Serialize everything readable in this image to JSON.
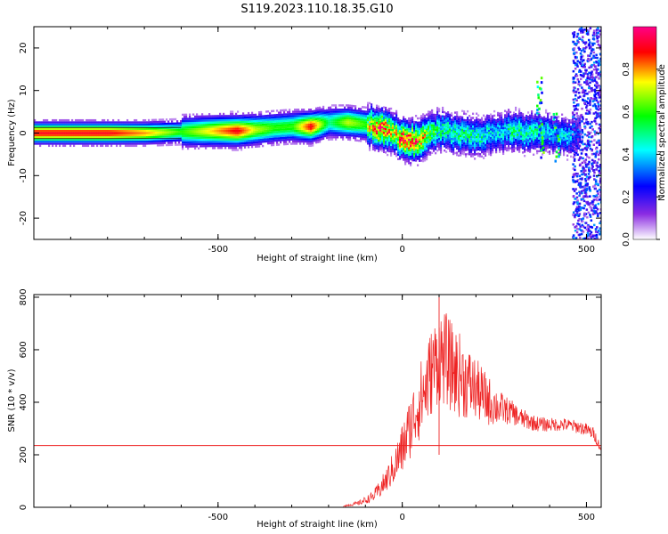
{
  "title": "S119.2023.110.18.35.G10",
  "chart_data": [
    {
      "type": "heatmap",
      "xlabel": "Height of straight line (km)",
      "ylabel": "Frequency (Hz)",
      "xlim": [
        -1000,
        540
      ],
      "ylim": [
        -25,
        25
      ],
      "xticks": [
        -500,
        0,
        500
      ],
      "xtick_labels": [
        "-500",
        "0",
        "500"
      ],
      "yticks": [
        -20,
        -10,
        0,
        10,
        20
      ],
      "ytick_labels": [
        "-20",
        "-10",
        "0",
        "10",
        "20"
      ],
      "colorbar": {
        "label": "Normalized spectral amplitude",
        "range": [
          0.0,
          1.0
        ],
        "ticks": [
          0.0,
          0.2,
          0.4,
          0.6,
          0.8
        ],
        "tick_labels": [
          "0.0",
          "0.2",
          "0.4",
          "0.6",
          "0.8"
        ],
        "colors": [
          "#ffffff",
          "#8a2be2",
          "#0000ff",
          "#00ffff",
          "#00ff00",
          "#ffff00",
          "#ff0000",
          "#ff0088"
        ]
      },
      "ridge": {
        "x": [
          -1000,
          -900,
          -800,
          -700,
          -600,
          -500,
          -450,
          -400,
          -350,
          -300,
          -250,
          -200,
          -150,
          -100,
          -75,
          -50,
          -25,
          0,
          25,
          50,
          75,
          100,
          150,
          200,
          250,
          300,
          350,
          400,
          450,
          470
        ],
        "y": [
          0,
          0,
          0,
          0,
          0.3,
          0.5,
          0.5,
          0.8,
          1.2,
          1.5,
          1.5,
          2.5,
          2.5,
          2.0,
          1.5,
          1.0,
          0,
          -1.5,
          -2.0,
          -1.8,
          0,
          0.5,
          0,
          -1.0,
          0,
          0.5,
          0,
          0,
          -1.0,
          0
        ],
        "amplitude": [
          0.9,
          0.9,
          0.9,
          0.8,
          0.6,
          0.8,
          0.9,
          0.7,
          0.6,
          0.6,
          0.9,
          0.5,
          0.7,
          0.6,
          0.9,
          0.9,
          0.7,
          0.9,
          0.9,
          0.8,
          0.6,
          0.5,
          0.5,
          0.5,
          0.4,
          0.5,
          0.5,
          0.4,
          0.4,
          0.3
        ]
      }
    },
    {
      "type": "line",
      "xlabel": "Height of straight line (km)",
      "ylabel": "SNR (10 * v/v)",
      "xlim": [
        -1000,
        540
      ],
      "ylim": [
        0,
        810
      ],
      "xticks": [
        -500,
        0,
        500
      ],
      "xtick_labels": [
        "-500",
        "0",
        "500"
      ],
      "yticks": [
        0,
        200,
        400,
        600,
        800
      ],
      "ytick_labels": [
        "0",
        "200",
        "400",
        "600",
        "800"
      ],
      "threshold": 235,
      "series": [
        {
          "color": "#ee2222",
          "x": [
            -160,
            -120,
            -80,
            -60,
            -40,
            -20,
            0,
            20,
            40,
            60,
            80,
            100,
            120,
            140,
            160,
            180,
            200,
            220,
            240,
            260,
            280,
            300,
            320,
            340,
            360,
            380,
            400,
            420,
            440,
            460,
            480,
            500,
            520,
            540
          ],
          "y": [
            5,
            15,
            40,
            70,
            110,
            160,
            220,
            300,
            380,
            440,
            520,
            580,
            560,
            520,
            500,
            470,
            450,
            420,
            400,
            380,
            370,
            360,
            340,
            330,
            320,
            315,
            315,
            315,
            315,
            310,
            305,
            295,
            280,
            220
          ],
          "spread": [
            3,
            8,
            20,
            35,
            50,
            70,
            100,
            120,
            140,
            160,
            170,
            180,
            180,
            170,
            160,
            140,
            120,
            110,
            90,
            70,
            55,
            45,
            40,
            35,
            30,
            28,
            26,
            25,
            25,
            25,
            25,
            25,
            25,
            15
          ],
          "peak": {
            "x": 100,
            "y": 810
          }
        }
      ]
    }
  ]
}
